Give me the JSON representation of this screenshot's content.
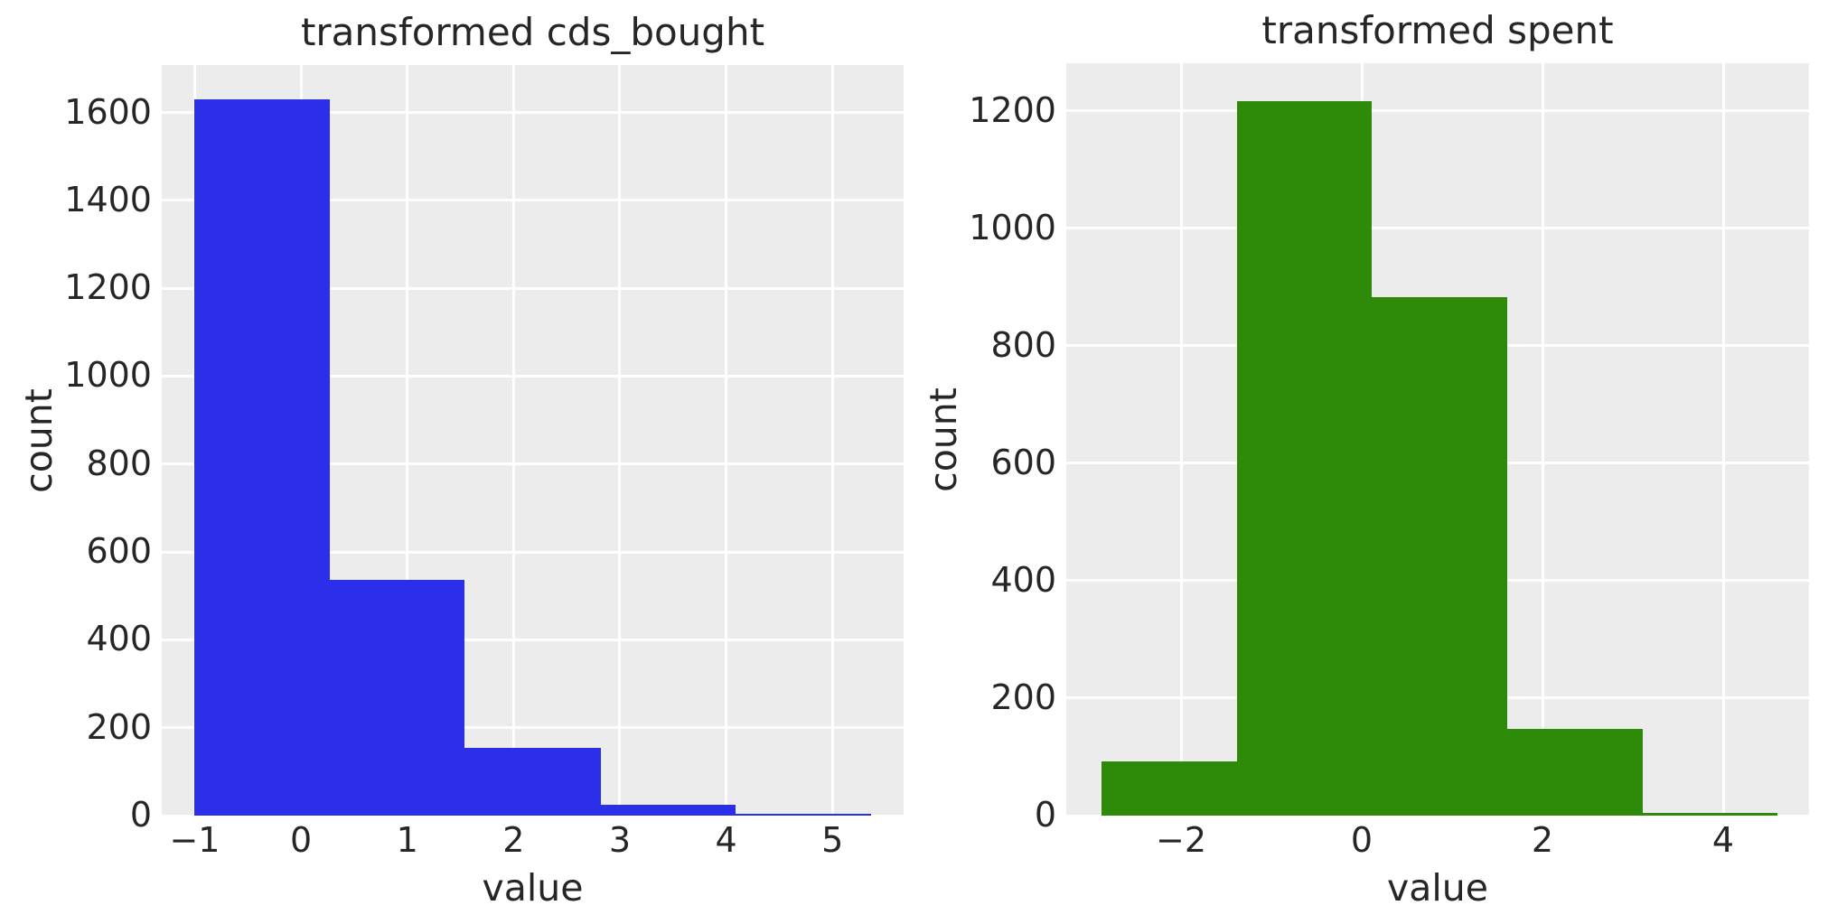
{
  "figure": {
    "background_color": "#ffffff",
    "plot_background_color": "#ececec",
    "grid_color": "#ffffff",
    "text_color": "#262626"
  },
  "chart_data": [
    {
      "type": "bar",
      "subtype": "histogram",
      "title": "transformed cds_bought",
      "xlabel": "value",
      "ylabel": "count",
      "bar_color": "#2b2fe9",
      "bin_edges": [
        -1.0,
        0.27,
        1.54,
        2.82,
        4.09,
        5.36
      ],
      "counts": [
        1630,
        537,
        154,
        25,
        4
      ],
      "xlim": [
        -1.31,
        5.67
      ],
      "ylim": [
        0,
        1708
      ],
      "xticks": [
        -1,
        0,
        1,
        2,
        3,
        4,
        5
      ],
      "xtick_labels": [
        "−1",
        "0",
        "1",
        "2",
        "3",
        "4",
        "5"
      ],
      "yticks": [
        0,
        200,
        400,
        600,
        800,
        1000,
        1200,
        1400,
        1600
      ],
      "ytick_labels": [
        "0",
        "200",
        "400",
        "600",
        "800",
        "1000",
        "1200",
        "1400",
        "1600"
      ],
      "grid": true,
      "legend": null
    },
    {
      "type": "bar",
      "subtype": "histogram",
      "title": "transformed spent",
      "xlabel": "value",
      "ylabel": "count",
      "bar_color": "#2e8b0a",
      "bin_edges": [
        -2.88,
        -1.38,
        0.11,
        1.61,
        3.11,
        4.6
      ],
      "counts": [
        93,
        1217,
        883,
        148,
        5
      ],
      "xlim": [
        -3.27,
        4.95
      ],
      "ylim": [
        0,
        1281
      ],
      "xticks": [
        -2,
        0,
        2,
        4
      ],
      "xtick_labels": [
        "−2",
        "0",
        "2",
        "4"
      ],
      "yticks": [
        0,
        200,
        400,
        600,
        800,
        1000,
        1200
      ],
      "ytick_labels": [
        "0",
        "200",
        "400",
        "600",
        "800",
        "1000",
        "1200"
      ],
      "grid": true,
      "legend": null
    }
  ]
}
